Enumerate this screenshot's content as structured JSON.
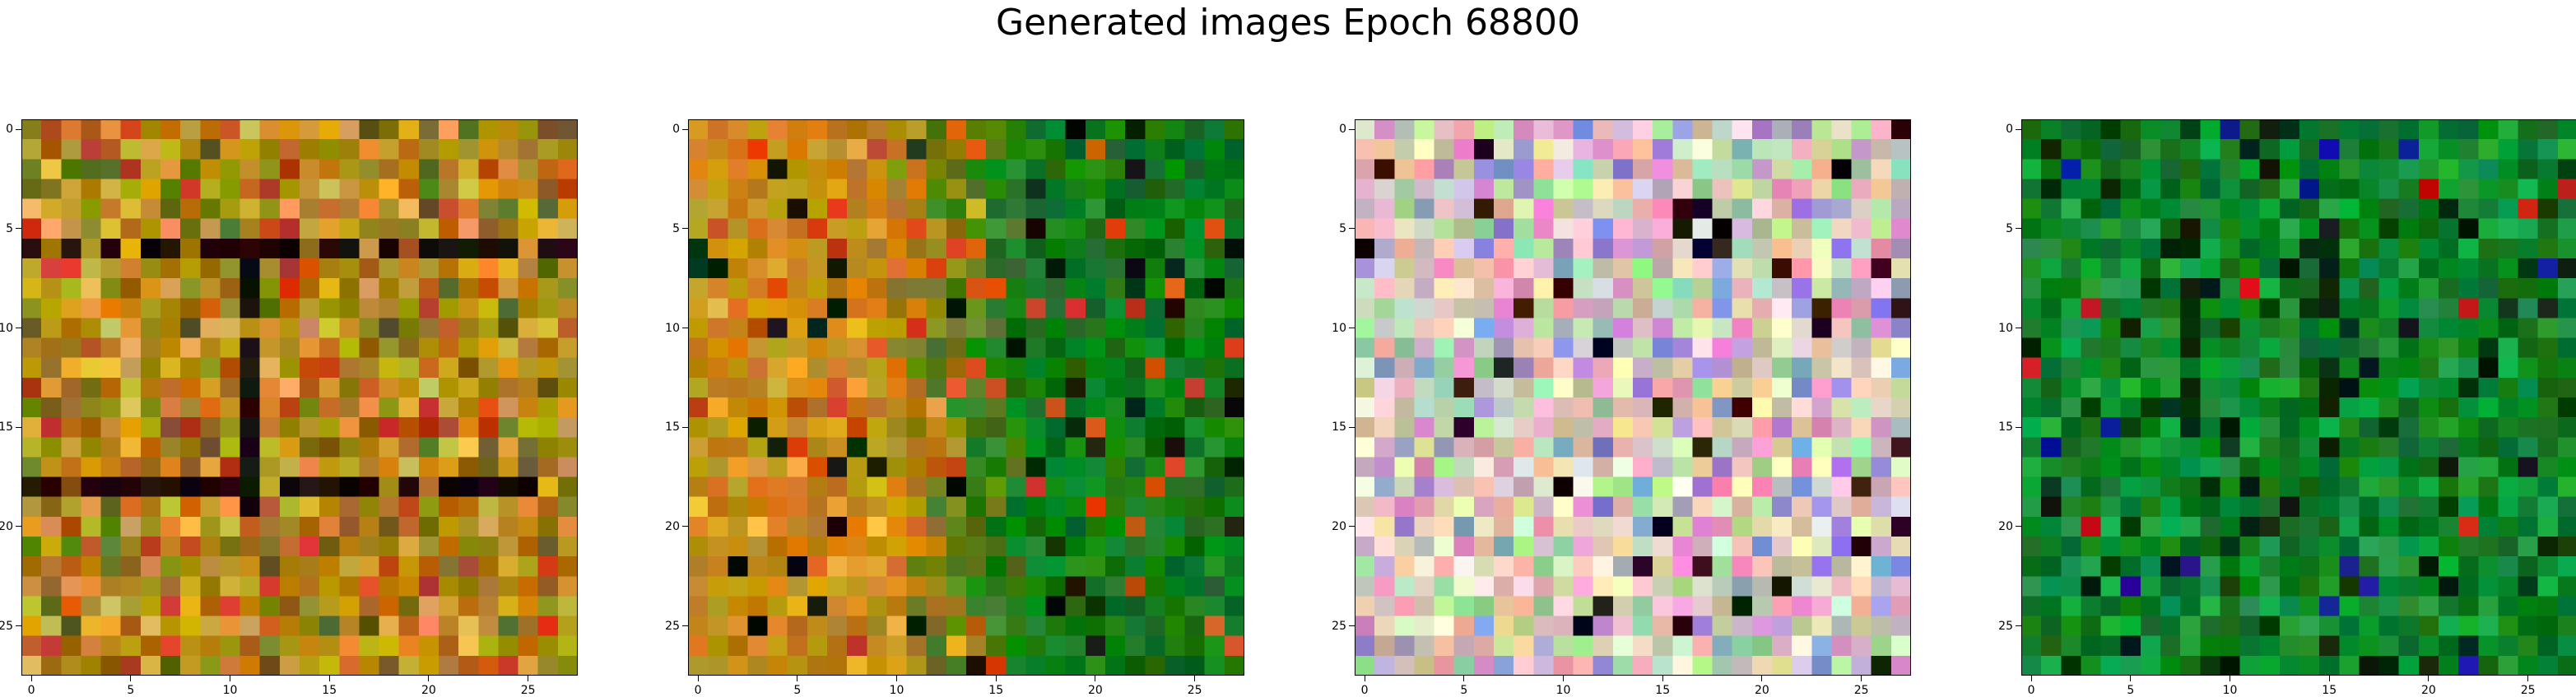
{
  "figure": {
    "title": "Generated images Epoch 68800"
  },
  "chart_data": [
    {
      "type": "heatmap",
      "title": "",
      "xlabel": "",
      "ylabel": "",
      "grid_size": [
        28,
        28
      ],
      "xlim": [
        -0.5,
        27.5
      ],
      "ylim": [
        27.5,
        -0.5
      ],
      "xticks": [
        0,
        5,
        10,
        15,
        20,
        25
      ],
      "yticks": [
        0,
        5,
        10,
        15,
        20,
        25
      ],
      "xtick_labels": [
        "0",
        "5",
        "10",
        "15",
        "20",
        "25"
      ],
      "ytick_labels": [
        "0",
        "5",
        "10",
        "15",
        "20",
        "25"
      ],
      "grid": false,
      "palette": {
        "base": "#a87a12",
        "mid": "#c99a20",
        "light": "#e0a84a",
        "dark": "#1a0805",
        "accent": "#c84a1a",
        "olive": "#6d6a18"
      },
      "dark_rows": [
        6,
        18
      ],
      "dark_cols": [
        11
      ]
    },
    {
      "type": "heatmap",
      "title": "",
      "xlabel": "",
      "ylabel": "",
      "grid_size": [
        28,
        28
      ],
      "xlim": [
        -0.5,
        27.5
      ],
      "ylim": [
        27.5,
        -0.5
      ],
      "xticks": [
        0,
        5,
        10,
        15,
        20,
        25
      ],
      "yticks": [
        0,
        5,
        10,
        15,
        20,
        25
      ],
      "xtick_labels": [
        "0",
        "5",
        "10",
        "15",
        "20",
        "25"
      ],
      "ytick_labels": [
        "0",
        "5",
        "10",
        "15",
        "20",
        "25"
      ],
      "grid": false,
      "palette": {
        "left": "#c98a18",
        "right": "#127a1a",
        "light": "#e8b030",
        "dark": "#0a1f05",
        "accent": "#d04a18"
      },
      "split_col": 13
    },
    {
      "type": "heatmap",
      "title": "",
      "xlabel": "",
      "ylabel": "",
      "grid_size": [
        28,
        28
      ],
      "xlim": [
        -0.5,
        27.5
      ],
      "ylim": [
        27.5,
        -0.5
      ],
      "xticks": [
        0,
        5,
        10,
        15,
        20,
        25
      ],
      "yticks": [
        0,
        5,
        10,
        15,
        20,
        25
      ],
      "xtick_labels": [
        "0",
        "5",
        "10",
        "15",
        "20",
        "25"
      ],
      "ytick_labels": [
        "0",
        "5",
        "10",
        "15",
        "20",
        "25"
      ],
      "grid": false,
      "palette": {
        "base": "#d8c8b0",
        "pink": "#e0a0c0",
        "green": "#a8d8a0",
        "blue": "#9090d0",
        "dark": "#200810",
        "cream": "#f0e8d0"
      }
    },
    {
      "type": "heatmap",
      "title": "",
      "xlabel": "",
      "ylabel": "",
      "grid_size": [
        28,
        28
      ],
      "xlim": [
        -0.5,
        27.5
      ],
      "ylim": [
        27.5,
        -0.5
      ],
      "xticks": [
        0,
        5,
        10,
        15,
        20,
        25
      ],
      "yticks": [
        0,
        5,
        10,
        15,
        20,
        25
      ],
      "xtick_labels": [
        "0",
        "5",
        "10",
        "15",
        "20",
        "25"
      ],
      "ytick_labels": [
        "0",
        "5",
        "10",
        "15",
        "20",
        "25"
      ],
      "grid": false,
      "palette": {
        "base": "#0a7a22",
        "light": "#18a040",
        "dark": "#042a0a",
        "accent": "#d01a10",
        "blue": "#1010a0"
      },
      "dark_cols": [
        8,
        15
      ]
    }
  ]
}
